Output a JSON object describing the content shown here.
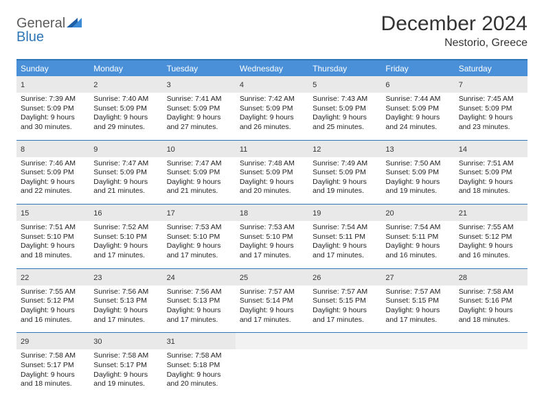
{
  "brand": {
    "part1": "General",
    "part2": "Blue"
  },
  "title": "December 2024",
  "location": "Nestorio, Greece",
  "colors": {
    "header_bg": "#4a90d9",
    "border": "#2e75b6",
    "daynum_bg": "#e9e9e9",
    "text": "#222222"
  },
  "weekdays": [
    "Sunday",
    "Monday",
    "Tuesday",
    "Wednesday",
    "Thursday",
    "Friday",
    "Saturday"
  ],
  "days": [
    {
      "n": 1,
      "sr": "7:39 AM",
      "ss": "5:09 PM",
      "dl": "9 hours and 30 minutes."
    },
    {
      "n": 2,
      "sr": "7:40 AM",
      "ss": "5:09 PM",
      "dl": "9 hours and 29 minutes."
    },
    {
      "n": 3,
      "sr": "7:41 AM",
      "ss": "5:09 PM",
      "dl": "9 hours and 27 minutes."
    },
    {
      "n": 4,
      "sr": "7:42 AM",
      "ss": "5:09 PM",
      "dl": "9 hours and 26 minutes."
    },
    {
      "n": 5,
      "sr": "7:43 AM",
      "ss": "5:09 PM",
      "dl": "9 hours and 25 minutes."
    },
    {
      "n": 6,
      "sr": "7:44 AM",
      "ss": "5:09 PM",
      "dl": "9 hours and 24 minutes."
    },
    {
      "n": 7,
      "sr": "7:45 AM",
      "ss": "5:09 PM",
      "dl": "9 hours and 23 minutes."
    },
    {
      "n": 8,
      "sr": "7:46 AM",
      "ss": "5:09 PM",
      "dl": "9 hours and 22 minutes."
    },
    {
      "n": 9,
      "sr": "7:47 AM",
      "ss": "5:09 PM",
      "dl": "9 hours and 21 minutes."
    },
    {
      "n": 10,
      "sr": "7:47 AM",
      "ss": "5:09 PM",
      "dl": "9 hours and 21 minutes."
    },
    {
      "n": 11,
      "sr": "7:48 AM",
      "ss": "5:09 PM",
      "dl": "9 hours and 20 minutes."
    },
    {
      "n": 12,
      "sr": "7:49 AM",
      "ss": "5:09 PM",
      "dl": "9 hours and 19 minutes."
    },
    {
      "n": 13,
      "sr": "7:50 AM",
      "ss": "5:09 PM",
      "dl": "9 hours and 19 minutes."
    },
    {
      "n": 14,
      "sr": "7:51 AM",
      "ss": "5:09 PM",
      "dl": "9 hours and 18 minutes."
    },
    {
      "n": 15,
      "sr": "7:51 AM",
      "ss": "5:10 PM",
      "dl": "9 hours and 18 minutes."
    },
    {
      "n": 16,
      "sr": "7:52 AM",
      "ss": "5:10 PM",
      "dl": "9 hours and 17 minutes."
    },
    {
      "n": 17,
      "sr": "7:53 AM",
      "ss": "5:10 PM",
      "dl": "9 hours and 17 minutes."
    },
    {
      "n": 18,
      "sr": "7:53 AM",
      "ss": "5:10 PM",
      "dl": "9 hours and 17 minutes."
    },
    {
      "n": 19,
      "sr": "7:54 AM",
      "ss": "5:11 PM",
      "dl": "9 hours and 17 minutes."
    },
    {
      "n": 20,
      "sr": "7:54 AM",
      "ss": "5:11 PM",
      "dl": "9 hours and 16 minutes."
    },
    {
      "n": 21,
      "sr": "7:55 AM",
      "ss": "5:12 PM",
      "dl": "9 hours and 16 minutes."
    },
    {
      "n": 22,
      "sr": "7:55 AM",
      "ss": "5:12 PM",
      "dl": "9 hours and 16 minutes."
    },
    {
      "n": 23,
      "sr": "7:56 AM",
      "ss": "5:13 PM",
      "dl": "9 hours and 17 minutes."
    },
    {
      "n": 24,
      "sr": "7:56 AM",
      "ss": "5:13 PM",
      "dl": "9 hours and 17 minutes."
    },
    {
      "n": 25,
      "sr": "7:57 AM",
      "ss": "5:14 PM",
      "dl": "9 hours and 17 minutes."
    },
    {
      "n": 26,
      "sr": "7:57 AM",
      "ss": "5:15 PM",
      "dl": "9 hours and 17 minutes."
    },
    {
      "n": 27,
      "sr": "7:57 AM",
      "ss": "5:15 PM",
      "dl": "9 hours and 17 minutes."
    },
    {
      "n": 28,
      "sr": "7:58 AM",
      "ss": "5:16 PM",
      "dl": "9 hours and 18 minutes."
    },
    {
      "n": 29,
      "sr": "7:58 AM",
      "ss": "5:17 PM",
      "dl": "9 hours and 18 minutes."
    },
    {
      "n": 30,
      "sr": "7:58 AM",
      "ss": "5:17 PM",
      "dl": "9 hours and 19 minutes."
    },
    {
      "n": 31,
      "sr": "7:58 AM",
      "ss": "5:18 PM",
      "dl": "9 hours and 20 minutes."
    }
  ],
  "labels": {
    "sunrise": "Sunrise:",
    "sunset": "Sunset:",
    "daylight": "Daylight:"
  },
  "layout": {
    "start_weekday": 0,
    "trailing_empty": 4
  }
}
